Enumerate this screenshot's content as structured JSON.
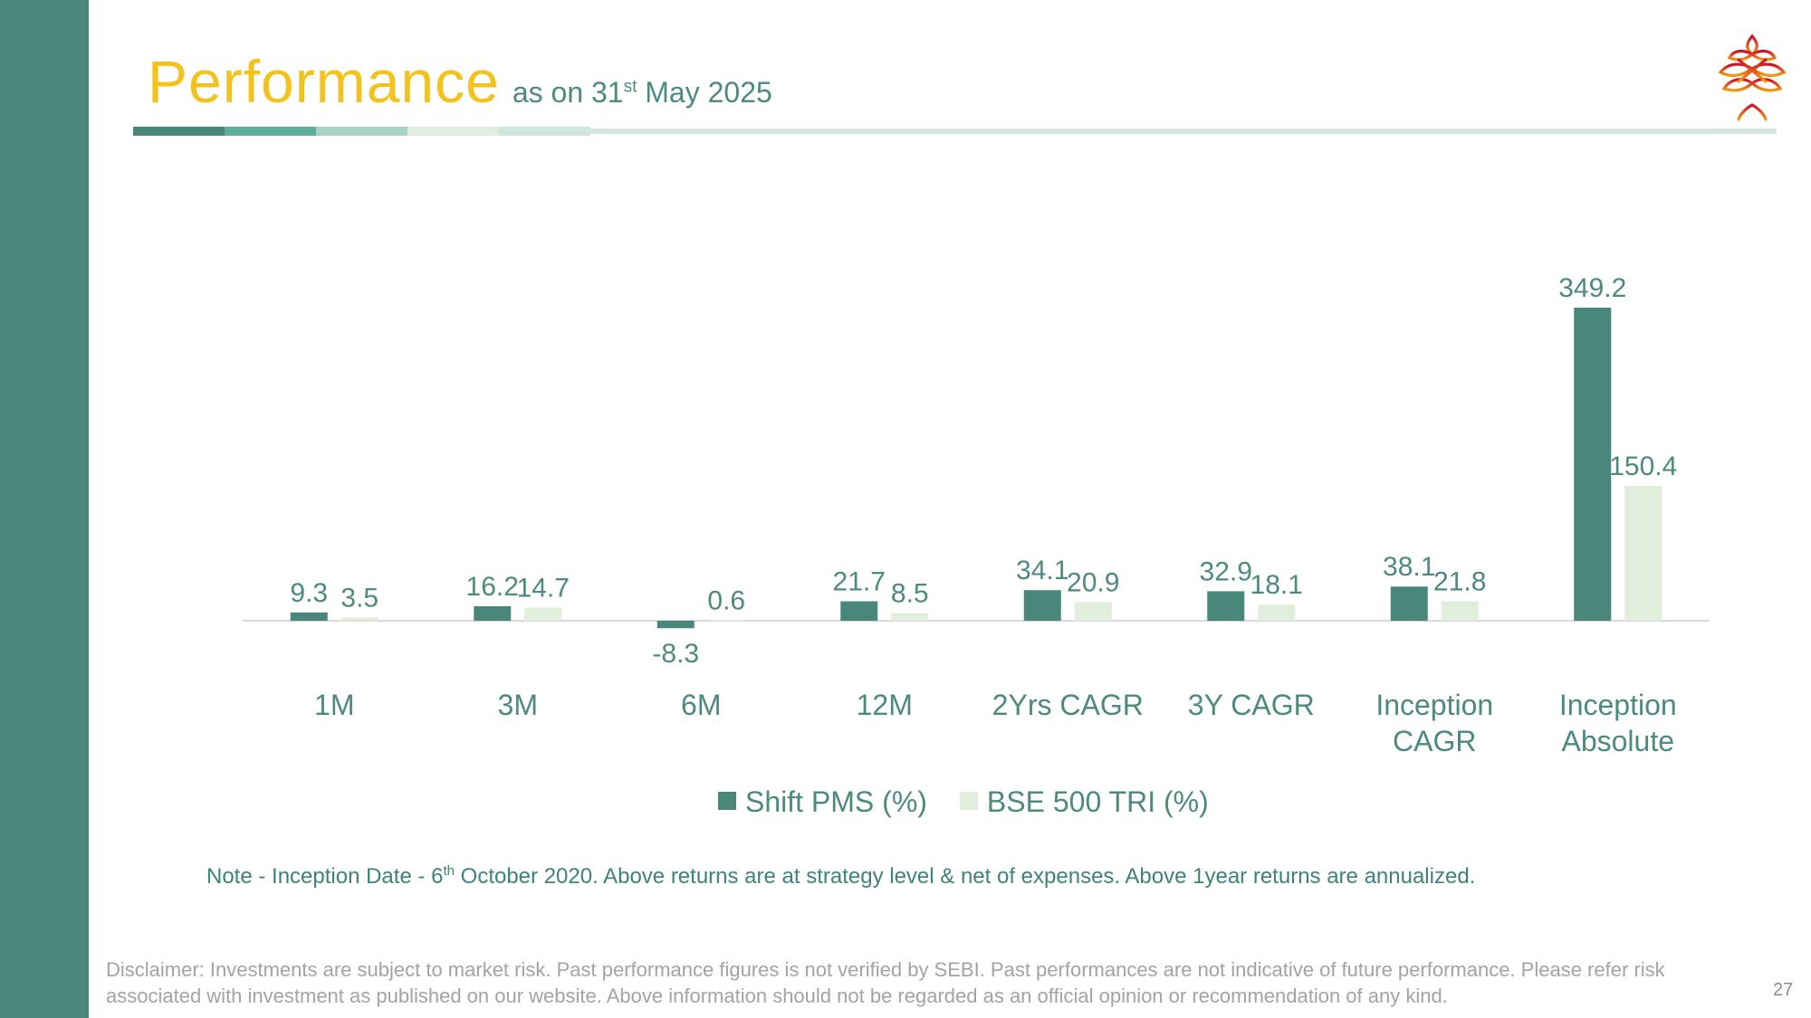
{
  "header": {
    "title": "Performance",
    "subtitle_prefix": "as on 31",
    "subtitle_sup": "st",
    "subtitle_suffix": " May 2025"
  },
  "colors": {
    "sidebar": "#48877a",
    "title": "#f4c21d",
    "series_shift": "#48877a",
    "series_bse": "#e1eedb",
    "text_teal": "#4d8a7e",
    "divider_segments": [
      "#48877a",
      "#5fae97",
      "#a6d4c4",
      "#e0ede0",
      "#cfe6de"
    ],
    "divider_line": "#d4e7e2"
  },
  "chart_data": {
    "type": "bar",
    "categories": [
      "1M",
      "3M",
      "6M",
      "12M",
      "2Yrs CAGR",
      "3Y CAGR",
      "Inception CAGR",
      "Inception Absolute"
    ],
    "series": [
      {
        "name": "Shift PMS (%)",
        "values": [
          9.3,
          16.2,
          -8.3,
          21.7,
          34.1,
          32.9,
          38.1,
          349.2
        ]
      },
      {
        "name": "BSE 500 TRI (%)",
        "values": [
          3.5,
          14.7,
          0.6,
          8.5,
          20.9,
          18.1,
          21.8,
          150.4
        ]
      }
    ],
    "title": "",
    "xlabel": "",
    "ylabel": "",
    "grid": false,
    "legend": "bottom-center",
    "data_labels": true
  },
  "note": {
    "prefix": "Note - Inception Date - 6",
    "sup": "th",
    "suffix": " October 2020. Above returns are at strategy level & net of expenses. Above 1year returns are annualized."
  },
  "disclaimer": "Disclaimer: Investments are subject to market risk. Past performance figures is not verified by SEBI. Past performances are not indicative of future performance. Please refer risk associated with investment as published on our website. Above information should not be regarded as an official opinion or recommendation of any kind.",
  "page_number": "27"
}
